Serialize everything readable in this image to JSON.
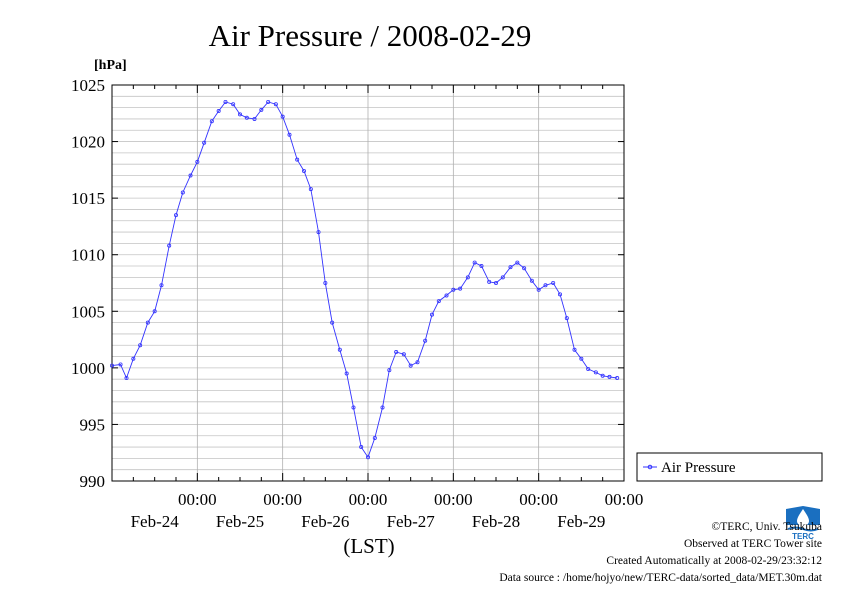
{
  "chart_data": {
    "type": "line",
    "title": "Air Pressure / 2008-02-29",
    "ylabel": "[hPa]",
    "xlabel": "(LST)",
    "ylim": [
      990,
      1025
    ],
    "ytick_values": [
      990,
      995,
      1000,
      1005,
      1010,
      1015,
      1020,
      1025
    ],
    "ytick_labels": [
      "990",
      "995",
      "1000",
      "1005",
      "1010",
      "1015",
      "1020",
      "1025"
    ],
    "x_range_days": [
      0,
      6
    ],
    "xticks": [
      {
        "time": "00:00",
        "date": "Feb-24",
        "day": 1
      },
      {
        "time": "00:00",
        "date": "Feb-25",
        "day": 2
      },
      {
        "time": "00:00",
        "date": "Feb-26",
        "day": 3
      },
      {
        "time": "00:00",
        "date": "Feb-27",
        "day": 4
      },
      {
        "time": "00:00",
        "date": "Feb-28",
        "day": 5
      },
      {
        "time": "00:00",
        "date": "Feb-29",
        "day": 6
      }
    ],
    "grid": true,
    "legend_position": "right",
    "series": [
      {
        "name": "Air Pressure",
        "color": "#3333ff",
        "points": [
          [
            0.0,
            1000.2
          ],
          [
            0.1,
            1000.3
          ],
          [
            0.17,
            999.1
          ],
          [
            0.25,
            1000.8
          ],
          [
            0.33,
            1002.0
          ],
          [
            0.42,
            1004.0
          ],
          [
            0.5,
            1005.0
          ],
          [
            0.58,
            1007.3
          ],
          [
            0.67,
            1010.8
          ],
          [
            0.75,
            1013.5
          ],
          [
            0.83,
            1015.5
          ],
          [
            0.92,
            1017.0
          ],
          [
            1.0,
            1018.2
          ],
          [
            1.08,
            1019.9
          ],
          [
            1.17,
            1021.8
          ],
          [
            1.25,
            1022.7
          ],
          [
            1.33,
            1023.5
          ],
          [
            1.42,
            1023.3
          ],
          [
            1.5,
            1022.4
          ],
          [
            1.58,
            1022.1
          ],
          [
            1.67,
            1022.0
          ],
          [
            1.75,
            1022.8
          ],
          [
            1.83,
            1023.5
          ],
          [
            1.92,
            1023.3
          ],
          [
            2.0,
            1022.2
          ],
          [
            2.08,
            1020.6
          ],
          [
            2.17,
            1018.4
          ],
          [
            2.25,
            1017.4
          ],
          [
            2.33,
            1015.8
          ],
          [
            2.42,
            1012.0
          ],
          [
            2.5,
            1007.5
          ],
          [
            2.58,
            1004.0
          ],
          [
            2.67,
            1001.6
          ],
          [
            2.75,
            999.5
          ],
          [
            2.83,
            996.5
          ],
          [
            2.92,
            993.0
          ],
          [
            3.0,
            992.1
          ],
          [
            3.08,
            993.8
          ],
          [
            3.17,
            996.5
          ],
          [
            3.25,
            999.8
          ],
          [
            3.33,
            1001.4
          ],
          [
            3.42,
            1001.2
          ],
          [
            3.5,
            1000.2
          ],
          [
            3.58,
            1000.5
          ],
          [
            3.67,
            1002.4
          ],
          [
            3.75,
            1004.7
          ],
          [
            3.83,
            1005.9
          ],
          [
            3.92,
            1006.4
          ],
          [
            4.0,
            1006.9
          ],
          [
            4.08,
            1007.0
          ],
          [
            4.17,
            1008.0
          ],
          [
            4.25,
            1009.3
          ],
          [
            4.33,
            1009.0
          ],
          [
            4.42,
            1007.6
          ],
          [
            4.5,
            1007.5
          ],
          [
            4.58,
            1008.0
          ],
          [
            4.67,
            1008.9
          ],
          [
            4.75,
            1009.3
          ],
          [
            4.83,
            1008.8
          ],
          [
            4.92,
            1007.7
          ],
          [
            5.0,
            1006.9
          ],
          [
            5.08,
            1007.3
          ],
          [
            5.17,
            1007.5
          ],
          [
            5.25,
            1006.5
          ],
          [
            5.33,
            1004.4
          ],
          [
            5.42,
            1001.6
          ],
          [
            5.5,
            1000.8
          ],
          [
            5.58,
            999.9
          ],
          [
            5.67,
            999.6
          ],
          [
            5.75,
            999.3
          ],
          [
            5.83,
            999.2
          ],
          [
            5.92,
            999.1
          ]
        ]
      }
    ]
  },
  "legend": {
    "label": "Air Pressure"
  },
  "credits": {
    "copyright": "©TERC, Univ. Tsukuba",
    "observed": "Observed at TERC Tower site",
    "created": "Created Automatically at 2008-02-29/23:32:12",
    "source": "Data source : /home/hojyo/new/TERC-data/sorted_data/MET.30m.dat"
  },
  "logo": {
    "text": "TERC",
    "color": "#1a6fc0"
  }
}
